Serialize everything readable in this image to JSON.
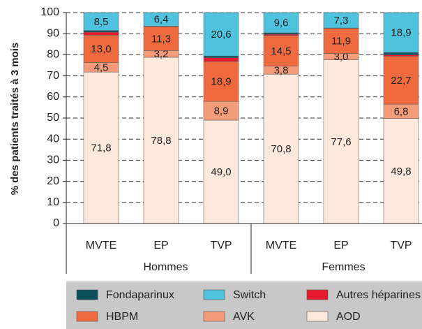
{
  "chart_data": {
    "type": "stacked_bar",
    "ylabel": "% des patients traités à 3 mois",
    "categories": [
      "MVTE",
      "EP",
      "TVP",
      "MVTE",
      "EP",
      "TVP"
    ],
    "groups": [
      {
        "name": "Hommes",
        "size": 3
      },
      {
        "name": "Femmes",
        "size": 3
      }
    ],
    "ylim": [
      0,
      100
    ],
    "yticks": [
      0,
      10,
      20,
      30,
      40,
      50,
      60,
      70,
      80,
      90,
      100
    ],
    "grid": true,
    "series": [
      {
        "name": "AOD",
        "color": "#fde8dc",
        "values": [
          71.8,
          78.8,
          49.0,
          70.8,
          77.6,
          49.8
        ],
        "value_labels": [
          "71,8",
          "78,8",
          "49,0",
          "70,8",
          "77,6",
          "49,8"
        ]
      },
      {
        "name": "AVK",
        "color": "#f49b79",
        "values": [
          4.5,
          3.2,
          8.9,
          3.8,
          3.0,
          6.8
        ],
        "value_labels": [
          "4,5",
          "3,2",
          "8,9",
          "3,8",
          "3,0",
          "6,8"
        ]
      },
      {
        "name": "HBPM",
        "color": "#ef6a3f",
        "values": [
          13.0,
          11.3,
          18.9,
          14.5,
          11.9,
          22.7
        ],
        "value_labels": [
          "13,0",
          "11,3",
          "18,9",
          "14,5",
          "11,9",
          "22,7"
        ]
      },
      {
        "name": "Autres héparines",
        "color": "#e8192c",
        "values": [
          1.4,
          0.1,
          1.8,
          0.6,
          0.1,
          0.6
        ]
      },
      {
        "name": "Fondaparinux",
        "color": "#0b4f5c",
        "values": [
          0.8,
          0.2,
          0.8,
          0.7,
          0.1,
          1.2
        ]
      },
      {
        "name": "Switch",
        "color": "#4fc3de",
        "values": [
          8.5,
          6.4,
          20.6,
          9.6,
          7.3,
          18.9
        ],
        "value_labels": [
          "8,5",
          "6,4",
          "20,6",
          "9,6",
          "7,3",
          "18,9"
        ]
      }
    ],
    "legend_order": [
      4,
      5,
      3,
      2,
      1,
      0
    ]
  }
}
